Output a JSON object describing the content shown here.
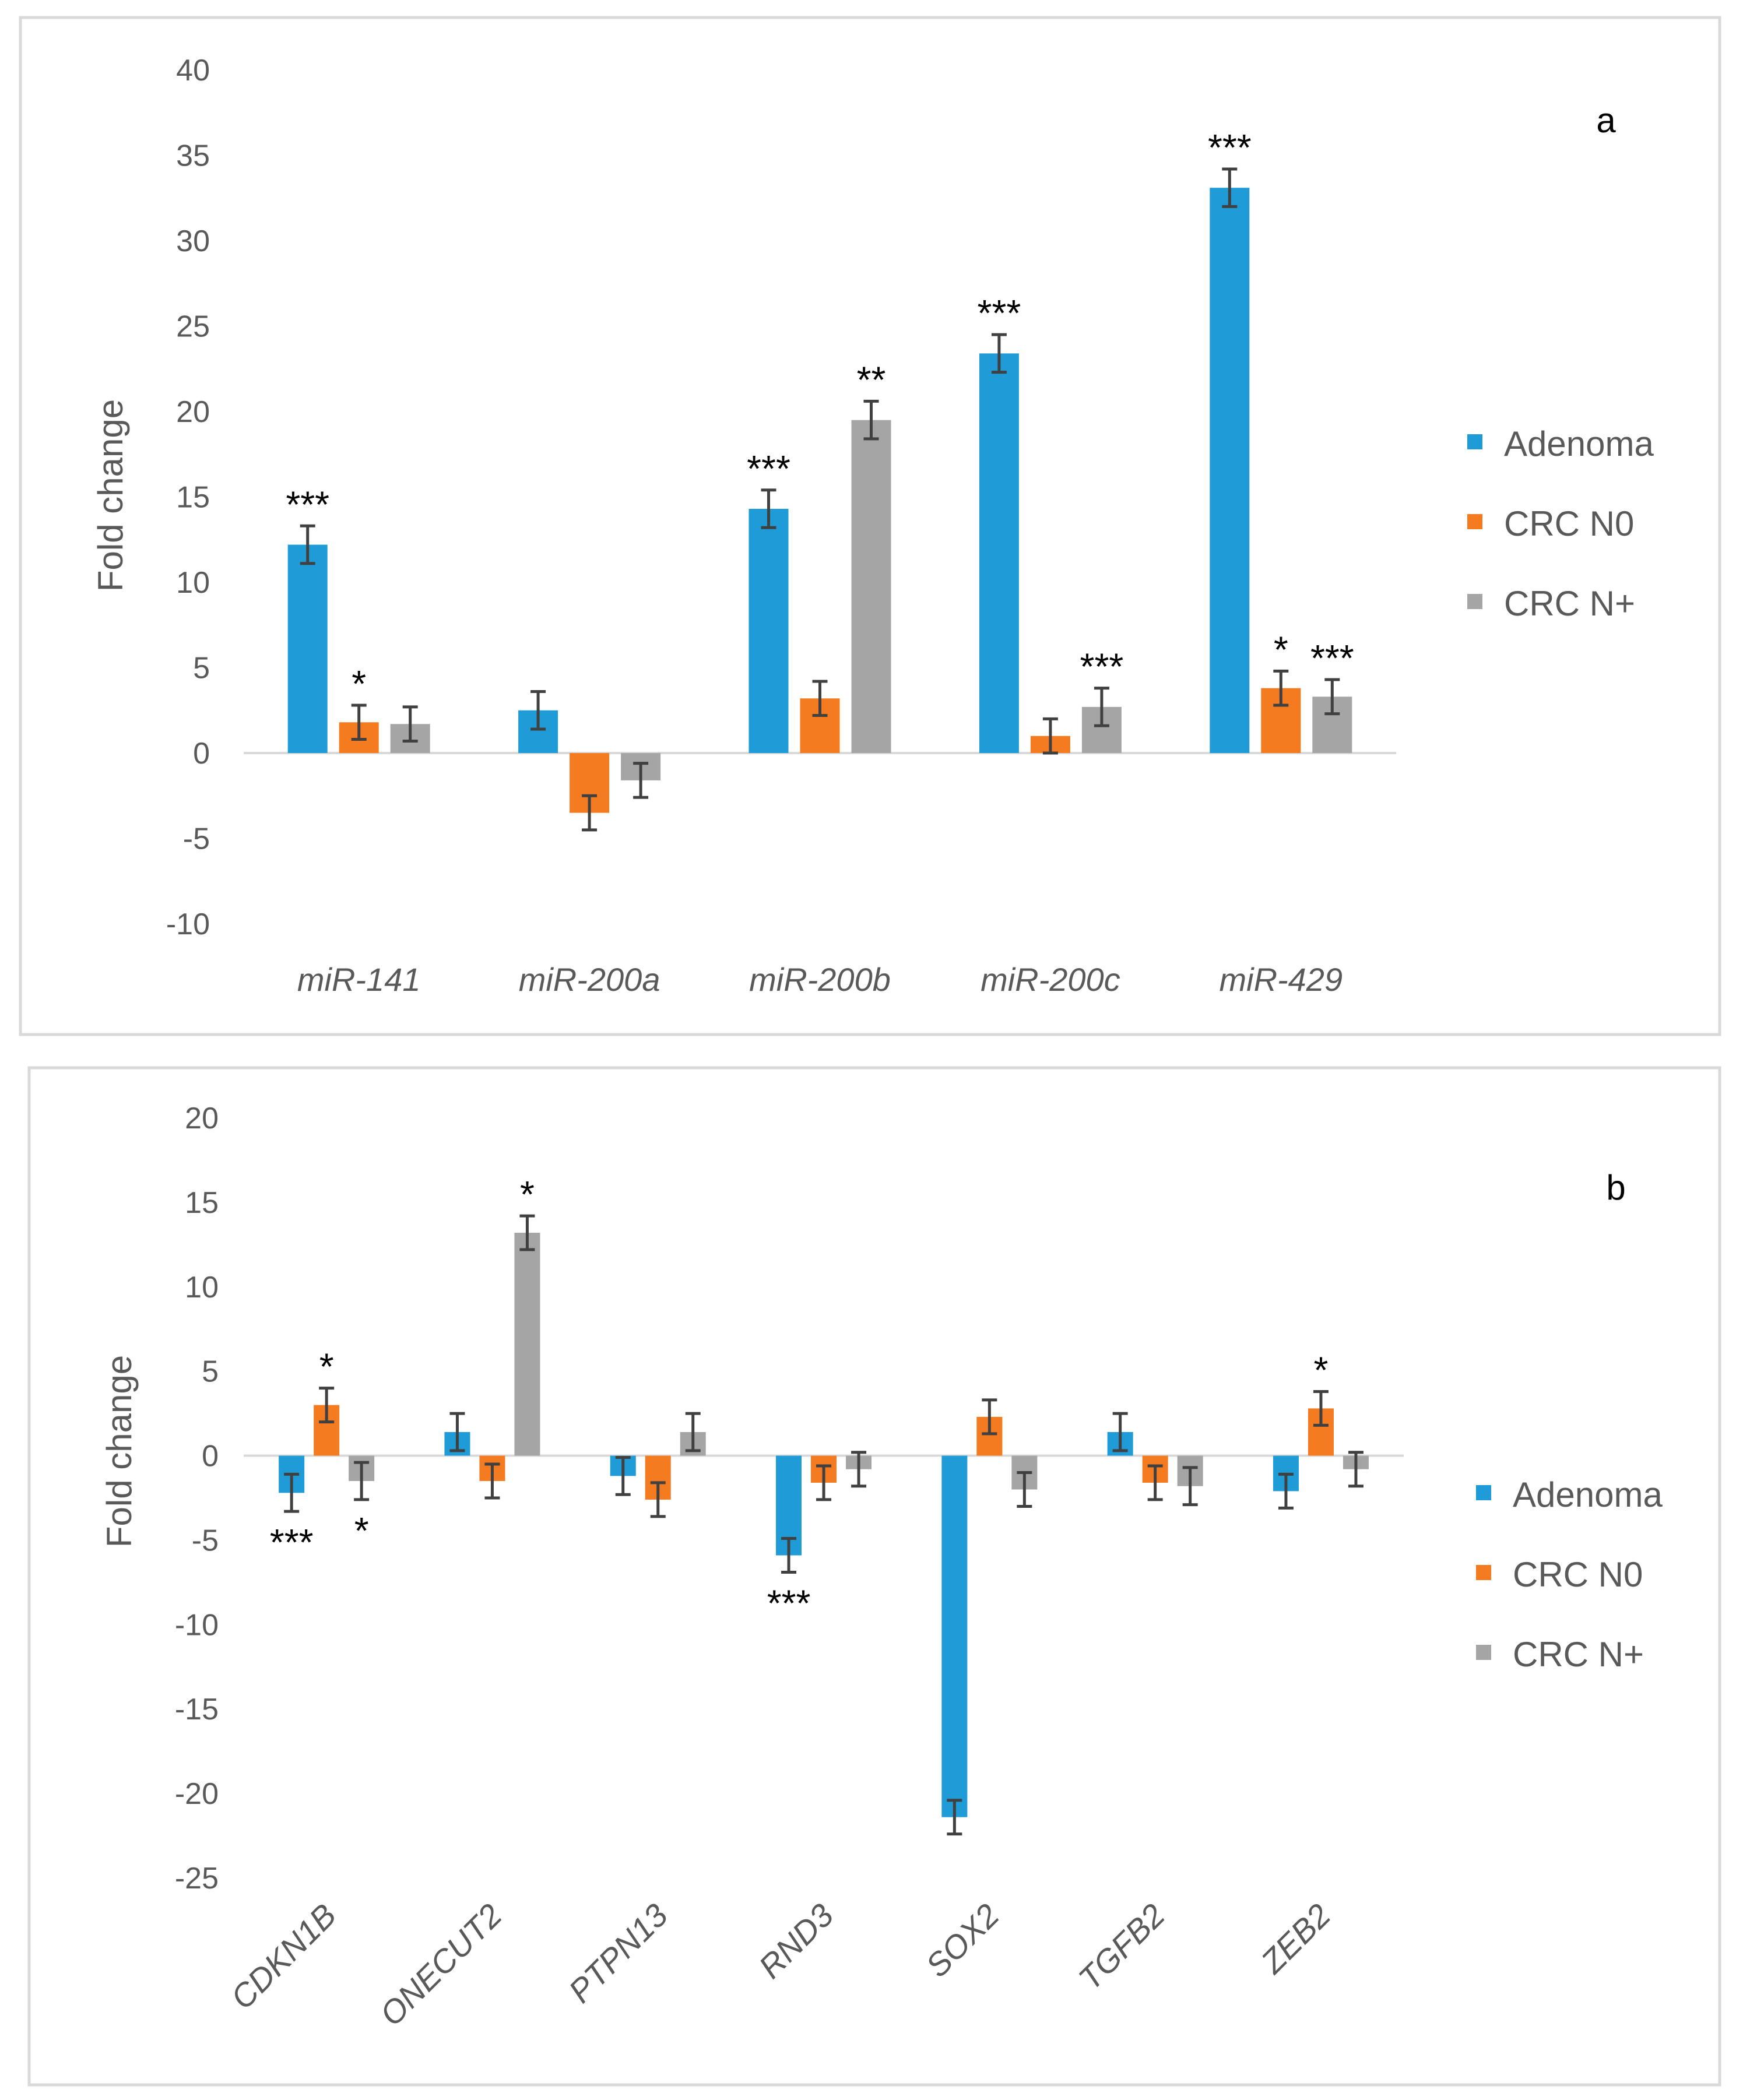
{
  "series_colors": {
    "Adenoma": "#1F9BD7",
    "CRC N0": "#F47B20",
    "CRC N+": "#A5A5A5"
  },
  "chart_data": [
    {
      "type": "bar",
      "panel": "a",
      "ylabel": "Fold change",
      "ylim": [
        -10,
        40
      ],
      "yticks": [
        -10,
        -5,
        0,
        5,
        10,
        15,
        20,
        25,
        30,
        35,
        40
      ],
      "categories": [
        "miR-141",
        "miR-200a",
        "miR-200b",
        "miR-200c",
        "miR-429"
      ],
      "series": [
        {
          "name": "Adenoma",
          "values": [
            12.2,
            2.5,
            14.3,
            23.4,
            33.1
          ],
          "errors": [
            1.1,
            1.1,
            1.1,
            1.1,
            1.1
          ],
          "sig": [
            "***",
            "",
            "***",
            "***",
            "***"
          ]
        },
        {
          "name": "CRC N0",
          "values": [
            1.8,
            -3.5,
            3.2,
            1.0,
            3.8
          ],
          "errors": [
            1.0,
            1.0,
            1.0,
            1.0,
            1.0
          ],
          "sig": [
            "*",
            "",
            "",
            "",
            "*"
          ]
        },
        {
          "name": "CRC N+",
          "values": [
            1.7,
            -1.6,
            19.5,
            2.7,
            3.3
          ],
          "errors": [
            1.0,
            1.0,
            1.1,
            1.1,
            1.0
          ],
          "sig": [
            "",
            "",
            "**",
            "***",
            "***"
          ]
        }
      ]
    },
    {
      "type": "bar",
      "panel": "b",
      "ylabel": "Fold change",
      "ylim": [
        -25,
        20
      ],
      "yticks": [
        -25,
        -20,
        -15,
        -10,
        -5,
        0,
        5,
        10,
        15,
        20
      ],
      "categories": [
        "CDKN1B",
        "ONECUT2",
        "PTPN13",
        "RND3",
        "SOX2",
        "TGFB2",
        "ZEB2"
      ],
      "series": [
        {
          "name": "Adenoma",
          "values": [
            -2.2,
            1.4,
            -1.2,
            -5.9,
            -21.4,
            1.4,
            -2.1
          ],
          "errors": [
            1.1,
            1.1,
            1.1,
            1.0,
            1.0,
            1.1,
            1.0
          ],
          "sig": [
            "***",
            "",
            "",
            "***",
            "",
            "",
            ""
          ]
        },
        {
          "name": "CRC N0",
          "values": [
            3.0,
            -1.5,
            -2.6,
            -1.6,
            2.3,
            -1.6,
            2.8
          ],
          "errors": [
            1.0,
            1.0,
            1.0,
            1.0,
            1.0,
            1.0,
            1.0
          ],
          "sig": [
            "*",
            "",
            "",
            "",
            "",
            "",
            "*"
          ]
        },
        {
          "name": "CRC N+",
          "values": [
            -1.5,
            13.2,
            1.4,
            -0.8,
            -2.0,
            -1.8,
            -0.8
          ],
          "errors": [
            1.1,
            1.0,
            1.1,
            1.0,
            1.0,
            1.1,
            1.0
          ],
          "sig": [
            "*",
            "*",
            "",
            "",
            "",
            "",
            ""
          ]
        }
      ]
    }
  ]
}
